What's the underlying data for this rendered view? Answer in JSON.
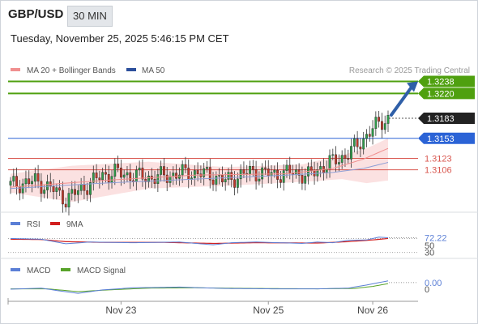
{
  "header": {
    "symbol": "GBP/USD",
    "timeframe": "30 MIN",
    "datetime": "Tuesday, November 25, 2025 5:46:15 PM CET",
    "credit": "Research © 2025 Trading Central"
  },
  "colors": {
    "resistance": "#4fa00f",
    "pivot": "#2b63d6",
    "support": "#d9574f",
    "price": "#222222",
    "arrow": "#2f5fa8",
    "up_candle": "#2e9b4a",
    "down_candle": "#c0392b",
    "band_fill": "#fbe1e1",
    "ma20": "#f08f8f",
    "ma50": "#8e9ed6",
    "rsi": "#5b7fd6",
    "rsi_ma": "#d11e1e",
    "macd": "#5b7fd6",
    "macd_signal": "#58a32a"
  },
  "chart_data": [
    {
      "type": "candlestick",
      "legend": [
        {
          "label": "MA 20 + Bollinger Bands",
          "color": "#f08f8f"
        },
        {
          "label": "MA 50",
          "color": "#2c4f9c"
        }
      ],
      "ylim": [
        1.3045,
        1.3258
      ],
      "levels": [
        {
          "label": "1.3238",
          "value": 1.3238,
          "kind": "resistance"
        },
        {
          "label": "1.3220",
          "value": 1.322,
          "kind": "resistance"
        },
        {
          "label": "1.3183",
          "value": 1.3183,
          "kind": "price"
        },
        {
          "label": "1.3153",
          "value": 1.3153,
          "kind": "pivot"
        },
        {
          "label": "1.3123",
          "value": 1.3123,
          "kind": "support"
        },
        {
          "label": "1.3106",
          "value": 1.3106,
          "kind": "support"
        }
      ],
      "price_path": [
        [
          0,
          1.3083
        ],
        [
          8,
          1.3089
        ],
        [
          14,
          1.3076
        ],
        [
          18,
          1.3062
        ],
        [
          22,
          1.3074
        ],
        [
          26,
          1.3086
        ],
        [
          30,
          1.3098
        ],
        [
          34,
          1.3102
        ],
        [
          40,
          1.3097
        ],
        [
          46,
          1.3094
        ],
        [
          52,
          1.3098
        ],
        [
          58,
          1.3102
        ],
        [
          62,
          1.31
        ],
        [
          66,
          1.3097
        ],
        [
          70,
          1.3089
        ],
        [
          74,
          1.3096
        ],
        [
          78,
          1.3103
        ],
        [
          82,
          1.3101
        ],
        [
          86,
          1.3099
        ],
        [
          92,
          1.3102
        ],
        [
          97,
          1.3097
        ],
        [
          101,
          1.3109
        ],
        [
          105,
          1.3118
        ],
        [
          109,
          1.3127
        ],
        [
          113,
          1.3142
        ],
        [
          117,
          1.3163
        ],
        [
          121,
          1.3178
        ],
        [
          123,
          1.3183
        ]
      ],
      "ma20_path": [
        [
          0,
          1.308
        ],
        [
          30,
          1.309
        ],
        [
          60,
          1.3098
        ],
        [
          90,
          1.31
        ],
        [
          105,
          1.3108
        ],
        [
          115,
          1.3122
        ],
        [
          123,
          1.3138
        ]
      ],
      "ma50_path": [
        [
          0,
          1.3078
        ],
        [
          30,
          1.3086
        ],
        [
          60,
          1.3092
        ],
        [
          90,
          1.3098
        ],
        [
          105,
          1.3102
        ],
        [
          115,
          1.3108
        ],
        [
          123,
          1.3117
        ]
      ],
      "band_upper": [
        [
          0,
          1.31
        ],
        [
          20,
          1.3112
        ],
        [
          45,
          1.3118
        ],
        [
          70,
          1.311
        ],
        [
          95,
          1.3114
        ],
        [
          108,
          1.3128
        ],
        [
          116,
          1.3138
        ],
        [
          123,
          1.3153
        ]
      ],
      "band_lower": [
        [
          0,
          1.3072
        ],
        [
          20,
          1.3058
        ],
        [
          45,
          1.3078
        ],
        [
          70,
          1.3082
        ],
        [
          95,
          1.3088
        ],
        [
          108,
          1.3092
        ],
        [
          116,
          1.3086
        ],
        [
          123,
          1.309
        ]
      ]
    },
    {
      "type": "line",
      "legend": [
        {
          "label": "RSI",
          "color": "#5b7fd6"
        },
        {
          "label": "9MA",
          "color": "#d11e1e"
        }
      ],
      "ylim": [
        20,
        85
      ],
      "ticks": [
        {
          "label": "72.22",
          "value": 72.22,
          "highlight": true
        },
        {
          "label": "50",
          "value": 50
        },
        {
          "label": "30",
          "value": 30
        }
      ],
      "rsi_path": [
        [
          0,
          70
        ],
        [
          10,
          68
        ],
        [
          18,
          55
        ],
        [
          26,
          60
        ],
        [
          40,
          58
        ],
        [
          55,
          60
        ],
        [
          66,
          52
        ],
        [
          72,
          58
        ],
        [
          80,
          60
        ],
        [
          95,
          56
        ],
        [
          100,
          60
        ],
        [
          105,
          58
        ],
        [
          110,
          65
        ],
        [
          116,
          66
        ],
        [
          120,
          74
        ],
        [
          123,
          72.22
        ]
      ],
      "ma_path": [
        [
          0,
          68
        ],
        [
          10,
          67
        ],
        [
          18,
          61
        ],
        [
          30,
          59
        ],
        [
          50,
          59
        ],
        [
          66,
          56
        ],
        [
          80,
          58
        ],
        [
          100,
          57
        ],
        [
          110,
          61
        ],
        [
          118,
          66
        ],
        [
          123,
          70
        ]
      ]
    },
    {
      "type": "line",
      "legend": [
        {
          "label": "MACD",
          "color": "#5b7fd6"
        },
        {
          "label": "MACD Signal",
          "color": "#58a32a"
        }
      ],
      "ylim": [
        -0.0035,
        0.0035
      ],
      "ticks": [
        {
          "label": "0.00",
          "value": 0.0019,
          "highlight": true
        },
        {
          "label": "0",
          "value": 0.0
        }
      ],
      "macd_path": [
        [
          0,
          0.0
        ],
        [
          10,
          0.0003
        ],
        [
          16,
          -0.0005
        ],
        [
          22,
          -0.0012
        ],
        [
          30,
          -0.0002
        ],
        [
          40,
          0.0004
        ],
        [
          55,
          0.0006
        ],
        [
          70,
          0.0002
        ],
        [
          85,
          0.0001
        ],
        [
          100,
          0.0001
        ],
        [
          110,
          0.0003
        ],
        [
          116,
          0.0012
        ],
        [
          123,
          0.0024
        ]
      ],
      "signal_path": [
        [
          0,
          0.0001
        ],
        [
          12,
          0.0001
        ],
        [
          22,
          -0.0007
        ],
        [
          32,
          -0.0002
        ],
        [
          45,
          0.0003
        ],
        [
          60,
          0.0004
        ],
        [
          80,
          0.0002
        ],
        [
          100,
          0.0001
        ],
        [
          112,
          0.0002
        ],
        [
          118,
          0.0008
        ],
        [
          123,
          0.0016
        ]
      ]
    }
  ],
  "x_axis": {
    "bars": 124,
    "labels": [
      {
        "label": "Nov 23",
        "bar": 36
      },
      {
        "label": "Nov 25",
        "bar": 84
      },
      {
        "label": "Nov 26",
        "bar": 118
      }
    ]
  }
}
